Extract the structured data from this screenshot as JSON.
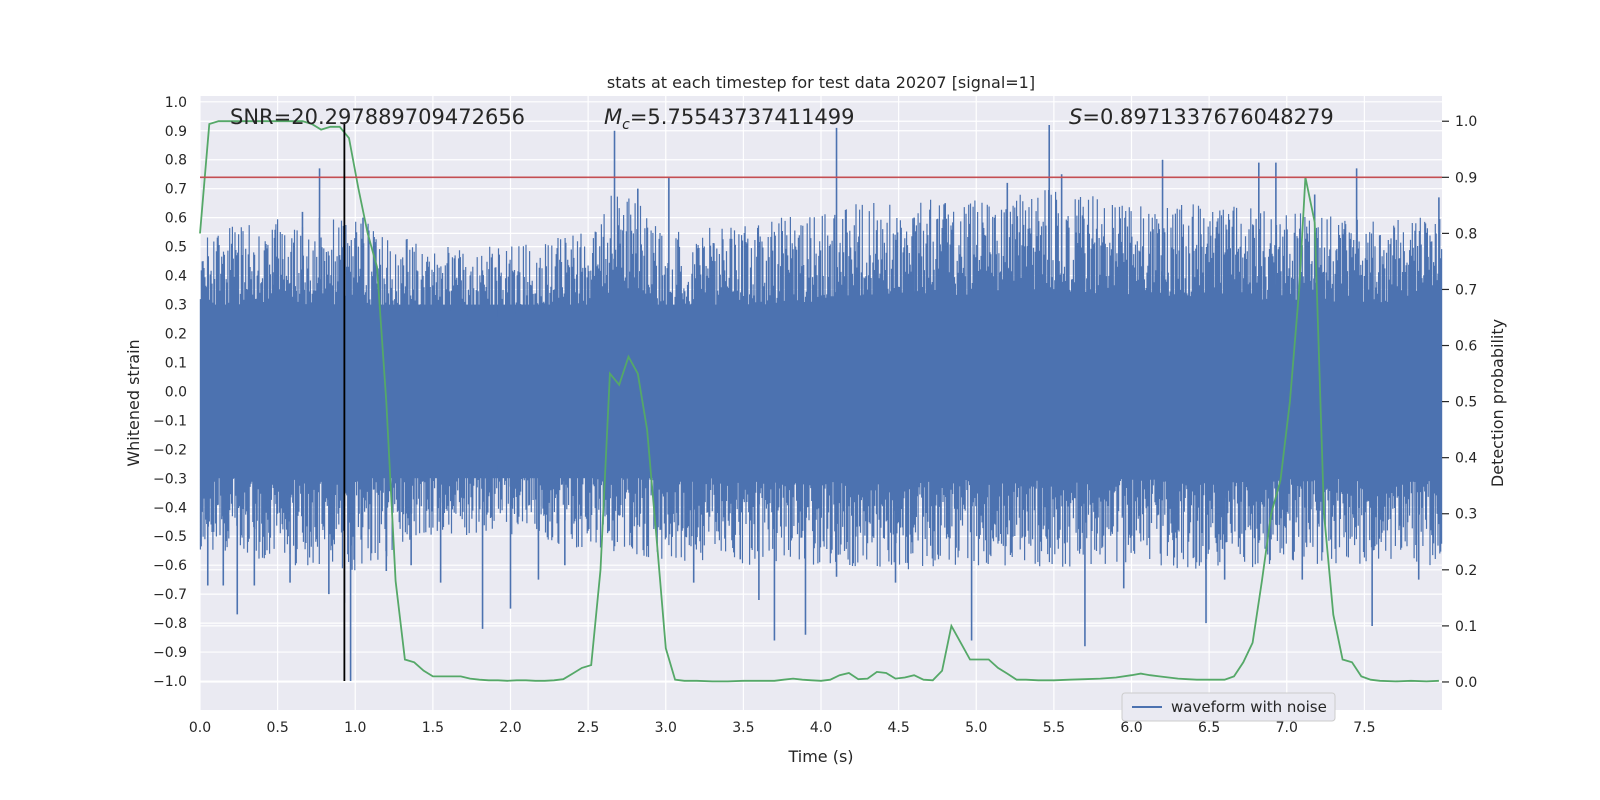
{
  "chart_data": {
    "type": "line",
    "title": "stats at each timestep for test data 20207 [signal=1]",
    "xlabel": "Time (s)",
    "ylabel": "Whitened strain",
    "y2label": "Detection probability",
    "xlim": [
      0,
      8
    ],
    "ylim": [
      -1.1,
      1.02
    ],
    "y2lim": [
      -0.05,
      1.045
    ],
    "xticks": [
      0.0,
      0.5,
      1.0,
      1.5,
      2.0,
      2.5,
      3.0,
      3.5,
      4.0,
      4.5,
      5.0,
      5.5,
      6.0,
      6.5,
      7.0,
      7.5
    ],
    "xtick_labels": [
      "0.0",
      "0.5",
      "1.0",
      "1.5",
      "2.0",
      "2.5",
      "3.0",
      "3.5",
      "4.0",
      "4.5",
      "5.0",
      "5.5",
      "6.0",
      "6.5",
      "7.0",
      "7.5"
    ],
    "yticks": [
      1.0,
      0.9,
      0.8,
      0.7,
      0.6,
      0.5,
      0.4,
      0.3,
      0.2,
      0.1,
      0.0,
      -0.1,
      -0.2,
      -0.3,
      -0.4,
      -0.5,
      -0.6,
      -0.7,
      -0.8,
      -0.9,
      -1.0
    ],
    "ytick_labels": [
      "1.0",
      "0.9",
      "0.8",
      "0.7",
      "0.6",
      "0.5",
      "0.4",
      "0.3",
      "0.2",
      "0.1",
      "0.0",
      "−0.1",
      "−0.2",
      "−0.3",
      "−0.4",
      "−0.5",
      "−0.6",
      "−0.7",
      "−0.8",
      "−0.9",
      "−1.0"
    ],
    "y2ticks": [
      1.0,
      0.9,
      0.8,
      0.7,
      0.6,
      0.5,
      0.4,
      0.3,
      0.2,
      0.1,
      0.0
    ],
    "y2tick_labels": [
      "1.0",
      "0.9",
      "0.8",
      "0.7",
      "0.6",
      "0.5",
      "0.4",
      "0.3",
      "0.2",
      "0.1",
      "0.0"
    ],
    "grid": true,
    "legend": {
      "placement": "lower-right",
      "entries": [
        "waveform with noise"
      ]
    },
    "annotations": {
      "snr": "SNR=20.297889709472656",
      "mc_prefix": "M",
      "mc_sub": "c",
      "mc_value": "=5.75543737411499",
      "s_prefix": "S",
      "s_value": "=0.8971337676048279"
    },
    "threshold": {
      "axis": "y2",
      "value": 0.9
    },
    "marker_line": {
      "x": 0.93,
      "y_range": [
        -1.0,
        0.93
      ]
    },
    "series": [
      {
        "name": "waveform with noise",
        "axis": "y",
        "kind": "noisy-waveform",
        "core_amplitude": 0.3,
        "envelope_top": [
          [
            0.0,
            0.55
          ],
          [
            0.5,
            0.6
          ],
          [
            1.0,
            0.6
          ],
          [
            1.5,
            0.5
          ],
          [
            2.0,
            0.5
          ],
          [
            2.5,
            0.55
          ],
          [
            2.7,
            0.72
          ],
          [
            2.85,
            0.65
          ],
          [
            3.0,
            0.55
          ],
          [
            3.5,
            0.58
          ],
          [
            4.0,
            0.62
          ],
          [
            4.5,
            0.68
          ],
          [
            5.0,
            0.66
          ],
          [
            5.5,
            0.7
          ],
          [
            6.0,
            0.65
          ],
          [
            6.5,
            0.66
          ],
          [
            7.0,
            0.62
          ],
          [
            7.5,
            0.6
          ],
          [
            8.0,
            0.6
          ]
        ],
        "envelope_bottom": [
          [
            0.0,
            -0.55
          ],
          [
            0.5,
            -0.6
          ],
          [
            1.0,
            -0.62
          ],
          [
            1.5,
            -0.5
          ],
          [
            2.0,
            -0.5
          ],
          [
            2.5,
            -0.55
          ],
          [
            3.0,
            -0.58
          ],
          [
            3.5,
            -0.6
          ],
          [
            4.0,
            -0.62
          ],
          [
            4.5,
            -0.62
          ],
          [
            5.0,
            -0.6
          ],
          [
            5.5,
            -0.62
          ],
          [
            6.0,
            -0.6
          ],
          [
            6.5,
            -0.62
          ],
          [
            7.0,
            -0.6
          ],
          [
            7.5,
            -0.6
          ],
          [
            8.0,
            -0.6
          ]
        ],
        "spikes": [
          [
            0.05,
            -0.67
          ],
          [
            0.15,
            -0.67
          ],
          [
            0.24,
            -0.77
          ],
          [
            0.35,
            -0.67
          ],
          [
            0.48,
            0.53
          ],
          [
            0.58,
            -0.66
          ],
          [
            0.66,
            0.62
          ],
          [
            0.77,
            0.77
          ],
          [
            0.83,
            -0.7
          ],
          [
            0.93,
            -0.73
          ],
          [
            0.97,
            -1.0
          ],
          [
            1.05,
            0.6
          ],
          [
            1.2,
            -0.62
          ],
          [
            1.36,
            -0.6
          ],
          [
            1.55,
            -0.66
          ],
          [
            1.82,
            -0.82
          ],
          [
            2.0,
            -0.75
          ],
          [
            2.18,
            -0.65
          ],
          [
            2.35,
            -0.6
          ],
          [
            2.55,
            0.55
          ],
          [
            2.67,
            0.9
          ],
          [
            2.82,
            0.7
          ],
          [
            3.02,
            0.74
          ],
          [
            3.18,
            -0.66
          ],
          [
            3.48,
            -0.58
          ],
          [
            3.6,
            -0.72
          ],
          [
            3.7,
            -0.86
          ],
          [
            3.9,
            -0.84
          ],
          [
            4.1,
            0.91
          ],
          [
            4.1,
            -0.64
          ],
          [
            4.48,
            -0.66
          ],
          [
            4.6,
            0.6
          ],
          [
            4.8,
            0.65
          ],
          [
            4.97,
            -0.86
          ],
          [
            5.2,
            0.72
          ],
          [
            5.47,
            0.92
          ],
          [
            5.55,
            0.75
          ],
          [
            5.7,
            -0.88
          ],
          [
            5.95,
            -0.68
          ],
          [
            6.2,
            0.8
          ],
          [
            6.48,
            -0.8
          ],
          [
            6.6,
            -0.65
          ],
          [
            6.82,
            0.79
          ],
          [
            6.93,
            0.79
          ],
          [
            7.1,
            -0.65
          ],
          [
            7.18,
            0.68
          ],
          [
            7.45,
            0.77
          ],
          [
            7.55,
            -0.81
          ],
          [
            7.85,
            -0.65
          ],
          [
            7.98,
            0.67
          ]
        ]
      },
      {
        "name": "",
        "axis": "y2",
        "kind": "line",
        "color": "#55a868",
        "x": [
          0.0,
          0.06,
          0.12,
          0.2,
          0.3,
          0.4,
          0.5,
          0.6,
          0.66,
          0.72,
          0.78,
          0.84,
          0.9,
          0.96,
          1.02,
          1.08,
          1.14,
          1.2,
          1.26,
          1.32,
          1.38,
          1.44,
          1.5,
          1.56,
          1.62,
          1.68,
          1.74,
          1.8,
          1.86,
          1.92,
          1.98,
          2.04,
          2.1,
          2.16,
          2.22,
          2.28,
          2.34,
          2.4,
          2.46,
          2.52,
          2.58,
          2.64,
          2.7,
          2.76,
          2.82,
          2.88,
          2.94,
          3.0,
          3.06,
          3.12,
          3.2,
          3.3,
          3.4,
          3.5,
          3.6,
          3.7,
          3.76,
          3.82,
          3.88,
          3.94,
          4.0,
          4.06,
          4.12,
          4.18,
          4.24,
          4.3,
          4.36,
          4.42,
          4.48,
          4.54,
          4.6,
          4.66,
          4.72,
          4.78,
          4.84,
          4.9,
          4.96,
          5.02,
          5.08,
          5.14,
          5.2,
          5.26,
          5.32,
          5.4,
          5.5,
          5.6,
          5.7,
          5.8,
          5.9,
          6.0,
          6.06,
          6.12,
          6.18,
          6.24,
          6.3,
          6.36,
          6.42,
          6.48,
          6.54,
          6.6,
          6.66,
          6.72,
          6.78,
          6.84,
          6.9,
          6.96,
          7.02,
          7.08,
          7.12,
          7.18,
          7.24,
          7.3,
          7.36,
          7.42,
          7.48,
          7.54,
          7.6,
          7.7,
          7.8,
          7.9,
          7.98
        ],
        "y": [
          0.8,
          0.995,
          1.0,
          1.0,
          1.0,
          1.0,
          1.0,
          1.0,
          1.0,
          0.995,
          0.985,
          0.99,
          0.99,
          0.97,
          0.88,
          0.8,
          0.74,
          0.5,
          0.18,
          0.04,
          0.035,
          0.02,
          0.01,
          0.01,
          0.01,
          0.01,
          0.006,
          0.004,
          0.003,
          0.003,
          0.002,
          0.003,
          0.003,
          0.002,
          0.002,
          0.003,
          0.005,
          0.015,
          0.025,
          0.03,
          0.2,
          0.55,
          0.53,
          0.58,
          0.55,
          0.45,
          0.26,
          0.06,
          0.004,
          0.002,
          0.002,
          0.001,
          0.001,
          0.002,
          0.002,
          0.002,
          0.004,
          0.006,
          0.004,
          0.003,
          0.002,
          0.004,
          0.012,
          0.016,
          0.005,
          0.006,
          0.018,
          0.016,
          0.006,
          0.008,
          0.012,
          0.004,
          0.003,
          0.02,
          0.1,
          0.07,
          0.04,
          0.04,
          0.04,
          0.025,
          0.015,
          0.004,
          0.004,
          0.003,
          0.003,
          0.004,
          0.005,
          0.006,
          0.008,
          0.012,
          0.015,
          0.012,
          0.01,
          0.008,
          0.006,
          0.005,
          0.004,
          0.004,
          0.004,
          0.004,
          0.01,
          0.035,
          0.07,
          0.18,
          0.3,
          0.36,
          0.5,
          0.7,
          0.9,
          0.82,
          0.3,
          0.12,
          0.04,
          0.035,
          0.01,
          0.004,
          0.002,
          0.001,
          0.002,
          0.001,
          0.002
        ]
      }
    ]
  }
}
